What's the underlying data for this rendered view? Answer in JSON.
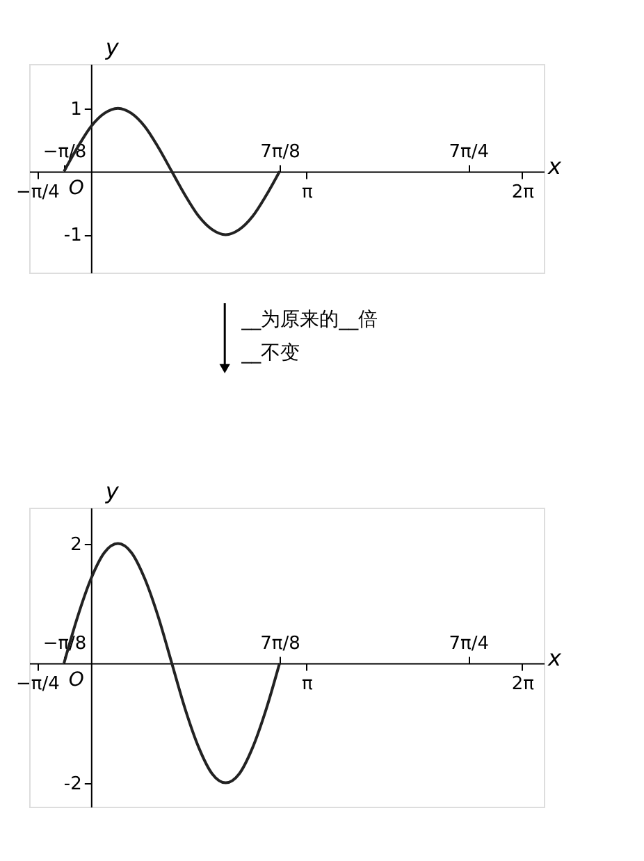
{
  "chart_data": [
    {
      "type": "line",
      "xlabel": "x",
      "ylabel": "y",
      "color": "#222222",
      "grid": false,
      "x": [
        -0.393,
        -0.196,
        0,
        0.196,
        0.393,
        0.589,
        0.785,
        0.982,
        1.178,
        1.374,
        1.571,
        1.767,
        1.963,
        2.16,
        2.356,
        2.553,
        2.749
      ],
      "values": [
        0,
        0.38,
        0.71,
        0.92,
        1,
        0.92,
        0.71,
        0.38,
        0,
        -0.38,
        -0.71,
        -0.92,
        -1,
        -0.92,
        -0.71,
        -0.38,
        0
      ],
      "xlim": [
        -0.9,
        6.6
      ],
      "ylim": [
        -1.6,
        1.7
      ],
      "xticks": [
        {
          "value": -0.785,
          "label": "−π/4"
        },
        {
          "value": 3.142,
          "label": "π"
        },
        {
          "value": 6.283,
          "label": "2π"
        }
      ],
      "x2lim": [
        -0.9,
        6.6
      ],
      "x2ticks": [
        {
          "value": -0.393,
          "label": "−π/8"
        },
        {
          "value": 2.749,
          "label": "7π/8"
        },
        {
          "value": 5.498,
          "label": "7π/4"
        }
      ],
      "yticks": [
        -1,
        1
      ],
      "annotations": [
        "O",
        "__为原来的__倍",
        "__不变"
      ]
    },
    {
      "type": "line",
      "xlabel": "x",
      "ylabel": "y",
      "color": "#222222",
      "grid": false,
      "x": [
        -0.393,
        -0.196,
        0,
        0.196,
        0.393,
        0.589,
        0.785,
        0.982,
        1.178,
        1.374,
        1.571,
        1.767,
        1.963,
        2.16,
        2.356,
        2.553,
        2.749
      ],
      "values": [
        0,
        0.77,
        1.41,
        1.85,
        2,
        1.85,
        1.41,
        0.77,
        0,
        -0.77,
        -1.41,
        -1.85,
        -2,
        -1.85,
        -1.41,
        -0.77,
        0
      ],
      "xlim": [
        -0.9,
        6.6
      ],
      "ylim": [
        -2.4,
        2.6
      ],
      "xticks": [
        {
          "value": -0.785,
          "label": "−π/4"
        },
        {
          "value": 3.142,
          "label": "π"
        },
        {
          "value": 6.283,
          "label": "2π"
        }
      ],
      "x2lim": [
        -0.9,
        6.6
      ],
      "x2ticks": [
        {
          "value": -0.393,
          "label": "−π/8"
        },
        {
          "value": 2.749,
          "label": "7π/8"
        },
        {
          "value": 5.498,
          "label": "7π/4"
        }
      ],
      "yticks": [
        -2,
        2
      ],
      "annotations": [
        "O"
      ]
    }
  ]
}
